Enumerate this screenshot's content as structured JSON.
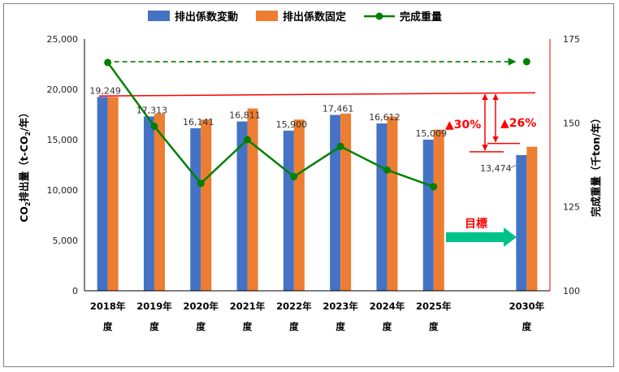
{
  "chart_data": {
    "type": "bar",
    "categories": [
      [
        "2018年",
        "度"
      ],
      [
        "2019年",
        "度"
      ],
      [
        "2020年",
        "度"
      ],
      [
        "2021年",
        "度"
      ],
      [
        "2022年",
        "度"
      ],
      [
        "2023年",
        "度"
      ],
      [
        "2024年",
        "度"
      ],
      [
        "2025年",
        "度"
      ],
      [
        "",
        ""
      ],
      [
        "2030年",
        "度"
      ]
    ],
    "series": [
      {
        "name": "排出係数変動",
        "kind": "bar",
        "axis": "left",
        "color": "#4472c4",
        "values": [
          19249,
          17313,
          16141,
          16811,
          15900,
          17461,
          16612,
          15009,
          null,
          13474
        ]
      },
      {
        "name": "排出係数固定",
        "kind": "bar",
        "axis": "left",
        "color": "#ed7d31",
        "values": [
          19249,
          17600,
          17000,
          18100,
          17000,
          17600,
          17300,
          16000,
          null,
          14300
        ]
      },
      {
        "name": "完成重量",
        "kind": "line",
        "axis": "right",
        "color": "#008000",
        "values": [
          168,
          149,
          132,
          145,
          134,
          143,
          136,
          131,
          null,
          null
        ]
      }
    ],
    "data_labels": [
      {
        "category": 0,
        "text": "19,249"
      },
      {
        "category": 1,
        "text": "17,313"
      },
      {
        "category": 2,
        "text": "16,141"
      },
      {
        "category": 3,
        "text": "16,811"
      },
      {
        "category": 4,
        "text": "15,900"
      },
      {
        "category": 5,
        "text": "17,461"
      },
      {
        "category": 6,
        "text": "16,612"
      },
      {
        "category": 7,
        "text": "15,009"
      },
      {
        "category": 9,
        "text": "13,474"
      }
    ],
    "y_left": {
      "label_main": "CO",
      "label_sub": "2",
      "label_rest": "排出量（t-CO",
      "label_sub2": "2",
      "label_end": "/年）",
      "ylim": [
        0,
        25000
      ],
      "ticks": [
        0,
        5000,
        10000,
        15000,
        20000,
        25000
      ],
      "tick_labels": [
        "0",
        "5,000",
        "10,000",
        "15,000",
        "20,000",
        "25,000"
      ]
    },
    "y_right": {
      "label": "完成重量（千ton/年）",
      "ylim": [
        100,
        175
      ],
      "ticks": [
        100,
        125,
        150,
        175
      ],
      "tick_labels": [
        "100",
        "125",
        "150",
        "175"
      ],
      "color": "#ff0000"
    },
    "reference_line": {
      "value": 19500,
      "color": "#ff0000"
    },
    "weight_target_arrow": {
      "from_category": 0,
      "to_category": 9,
      "value": 168,
      "color": "#008000"
    },
    "annotations": {
      "reduction_a": "▲30%",
      "reduction_b": "▲26%",
      "target": "目標"
    },
    "target_arrow_color": "#00c389",
    "legend": {
      "position": "top"
    }
  }
}
